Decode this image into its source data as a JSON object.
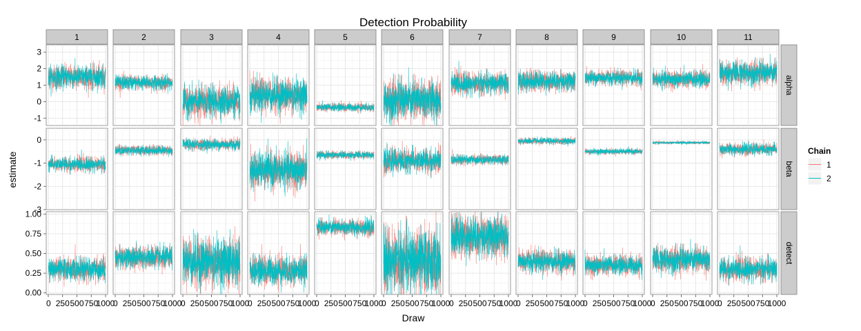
{
  "chart_data": {
    "type": "line",
    "title": "Detection Probability",
    "xlabel": "Draw",
    "ylabel": "estimate",
    "columns": [
      "1",
      "2",
      "3",
      "4",
      "5",
      "6",
      "7",
      "8",
      "9",
      "10",
      "11"
    ],
    "rows": [
      "alpha",
      "beta",
      "detect"
    ],
    "x_range": [
      0,
      1000
    ],
    "x_ticks": [
      0,
      250,
      500,
      750,
      1000
    ],
    "x_tick_labels": [
      "0",
      "250",
      "500",
      "750",
      "1000"
    ],
    "row_axes": {
      "alpha": {
        "ylim": [
          -1.45,
          3.45
        ],
        "ticks": [
          -1,
          0,
          1,
          2,
          3
        ],
        "tick_labels": [
          "-1",
          "0",
          "1",
          "2",
          "3"
        ]
      },
      "beta": {
        "ylim": [
          -3.0,
          0.5
        ],
        "ticks": [
          -3,
          -2,
          -1,
          0
        ],
        "tick_labels": [
          "-3",
          "-2",
          "-1",
          "0"
        ]
      },
      "detect": {
        "ylim": [
          -0.02,
          1.03
        ],
        "ticks": [
          0,
          0.25,
          0.5,
          0.75,
          1.0
        ],
        "tick_labels": [
          "0.00",
          "0.25",
          "0.50",
          "0.75",
          "1.00"
        ]
      }
    },
    "legend": {
      "title": "Chain",
      "position": "right",
      "entries": [
        "1",
        "2"
      ]
    },
    "colors": {
      "1": "#F8766D",
      "2": "#00BFC4"
    },
    "grid": true,
    "draws": 1000,
    "series_summary": {
      "alpha": [
        {
          "mean": 1.5,
          "sd": 0.35
        },
        {
          "mean": 1.15,
          "sd": 0.22
        },
        {
          "mean": 0.0,
          "sd": 0.45
        },
        {
          "mean": 0.4,
          "sd": 0.5
        },
        {
          "mean": -0.35,
          "sd": 0.12
        },
        {
          "mean": 0.1,
          "sd": 0.6
        },
        {
          "mean": 1.1,
          "sd": 0.32
        },
        {
          "mean": 1.25,
          "sd": 0.3
        },
        {
          "mean": 1.45,
          "sd": 0.22
        },
        {
          "mean": 1.35,
          "sd": 0.25
        },
        {
          "mean": 1.75,
          "sd": 0.35
        }
      ],
      "beta": [
        {
          "mean": -1.05,
          "sd": 0.15
        },
        {
          "mean": -0.45,
          "sd": 0.1
        },
        {
          "mean": -0.2,
          "sd": 0.12
        },
        {
          "mean": -1.3,
          "sd": 0.38
        },
        {
          "mean": -0.65,
          "sd": 0.08
        },
        {
          "mean": -0.9,
          "sd": 0.25
        },
        {
          "mean": -0.85,
          "sd": 0.1
        },
        {
          "mean": -0.05,
          "sd": 0.07
        },
        {
          "mean": -0.5,
          "sd": 0.06
        },
        {
          "mean": -0.12,
          "sd": 0.03
        },
        {
          "mean": -0.4,
          "sd": 0.12
        }
      ],
      "detect": [
        {
          "mean": 0.3,
          "sd": 0.07
        },
        {
          "mean": 0.45,
          "sd": 0.07
        },
        {
          "mean": 0.4,
          "sd": 0.15
        },
        {
          "mean": 0.28,
          "sd": 0.09
        },
        {
          "mean": 0.83,
          "sd": 0.05
        },
        {
          "mean": 0.4,
          "sd": 0.2
        },
        {
          "mean": 0.72,
          "sd": 0.13
        },
        {
          "mean": 0.4,
          "sd": 0.07
        },
        {
          "mean": 0.35,
          "sd": 0.06
        },
        {
          "mean": 0.42,
          "sd": 0.08
        },
        {
          "mean": 0.3,
          "sd": 0.07
        }
      ]
    }
  }
}
